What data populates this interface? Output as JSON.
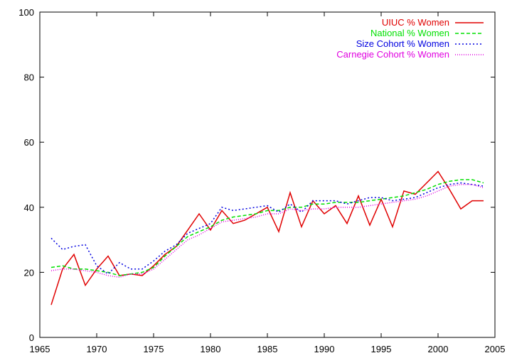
{
  "chart_data": {
    "type": "line",
    "title": "",
    "xlabel": "",
    "ylabel": "",
    "xlim": [
      1965,
      2005
    ],
    "ylim": [
      0,
      100
    ],
    "xticks": [
      1965,
      1970,
      1975,
      1980,
      1985,
      1990,
      1995,
      2000,
      2005
    ],
    "yticks": [
      0,
      20,
      40,
      60,
      80,
      100
    ],
    "grid": false,
    "legend_position": "top-right",
    "x": [
      1966,
      1967,
      1968,
      1969,
      1970,
      1971,
      1972,
      1973,
      1974,
      1975,
      1976,
      1977,
      1978,
      1979,
      1980,
      1981,
      1982,
      1983,
      1984,
      1985,
      1986,
      1987,
      1988,
      1989,
      1990,
      1991,
      1992,
      1993,
      1994,
      1995,
      1996,
      1997,
      1998,
      1999,
      2000,
      2001,
      2002,
      2003,
      2004
    ],
    "series": [
      {
        "name": "UIUC % Women",
        "color": "#e00000",
        "dash": "solid",
        "values": [
          10.0,
          21.0,
          25.5,
          16.0,
          21.0,
          25.0,
          19.0,
          19.5,
          19.0,
          22.0,
          25.5,
          28.0,
          33.0,
          38.0,
          33.0,
          39.0,
          35.0,
          36.0,
          38.0,
          40.0,
          32.5,
          44.5,
          34.0,
          42.0,
          38.0,
          40.5,
          35.0,
          43.5,
          34.5,
          42.5,
          34.0,
          45.0,
          44.0,
          47.5,
          51.0,
          45.5,
          39.5,
          42.0,
          42.0
        ]
      },
      {
        "name": "National % Women",
        "color": "#00e000",
        "dash": "dashed",
        "values": [
          21.5,
          22.0,
          21.0,
          21.0,
          20.5,
          20.0,
          19.0,
          19.5,
          20.0,
          21.5,
          25.0,
          28.0,
          31.0,
          32.5,
          34.0,
          36.0,
          37.0,
          37.5,
          38.0,
          39.0,
          39.0,
          40.0,
          40.0,
          41.0,
          41.0,
          41.5,
          41.5,
          41.5,
          42.0,
          42.5,
          43.0,
          43.5,
          44.5,
          45.5,
          47.0,
          48.0,
          48.5,
          48.5,
          47.5
        ]
      },
      {
        "name": "Size Cohort % Women",
        "color": "#0000e0",
        "dash": "dotted",
        "values": [
          30.5,
          27.0,
          28.0,
          28.5,
          22.0,
          19.5,
          23.0,
          21.0,
          21.0,
          23.5,
          26.5,
          28.5,
          32.0,
          33.5,
          35.0,
          40.0,
          39.0,
          39.5,
          40.0,
          40.5,
          38.5,
          41.0,
          38.5,
          42.0,
          42.0,
          42.0,
          41.0,
          42.0,
          43.0,
          43.0,
          42.0,
          42.5,
          43.0,
          44.5,
          46.0,
          47.0,
          47.5,
          47.0,
          46.5
        ]
      },
      {
        "name": "Carnegie Cohort % Women",
        "color": "#e000e0",
        "dash": "fine-dotted",
        "values": [
          20.5,
          21.0,
          21.0,
          20.5,
          20.0,
          19.0,
          18.5,
          19.5,
          19.5,
          21.0,
          24.0,
          27.0,
          30.0,
          31.5,
          33.5,
          35.5,
          36.0,
          36.5,
          37.0,
          38.0,
          38.0,
          39.5,
          39.0,
          39.5,
          39.5,
          40.0,
          40.0,
          40.0,
          40.5,
          41.0,
          41.5,
          42.0,
          42.5,
          43.5,
          45.0,
          46.5,
          47.0,
          47.0,
          46.0
        ]
      }
    ]
  }
}
